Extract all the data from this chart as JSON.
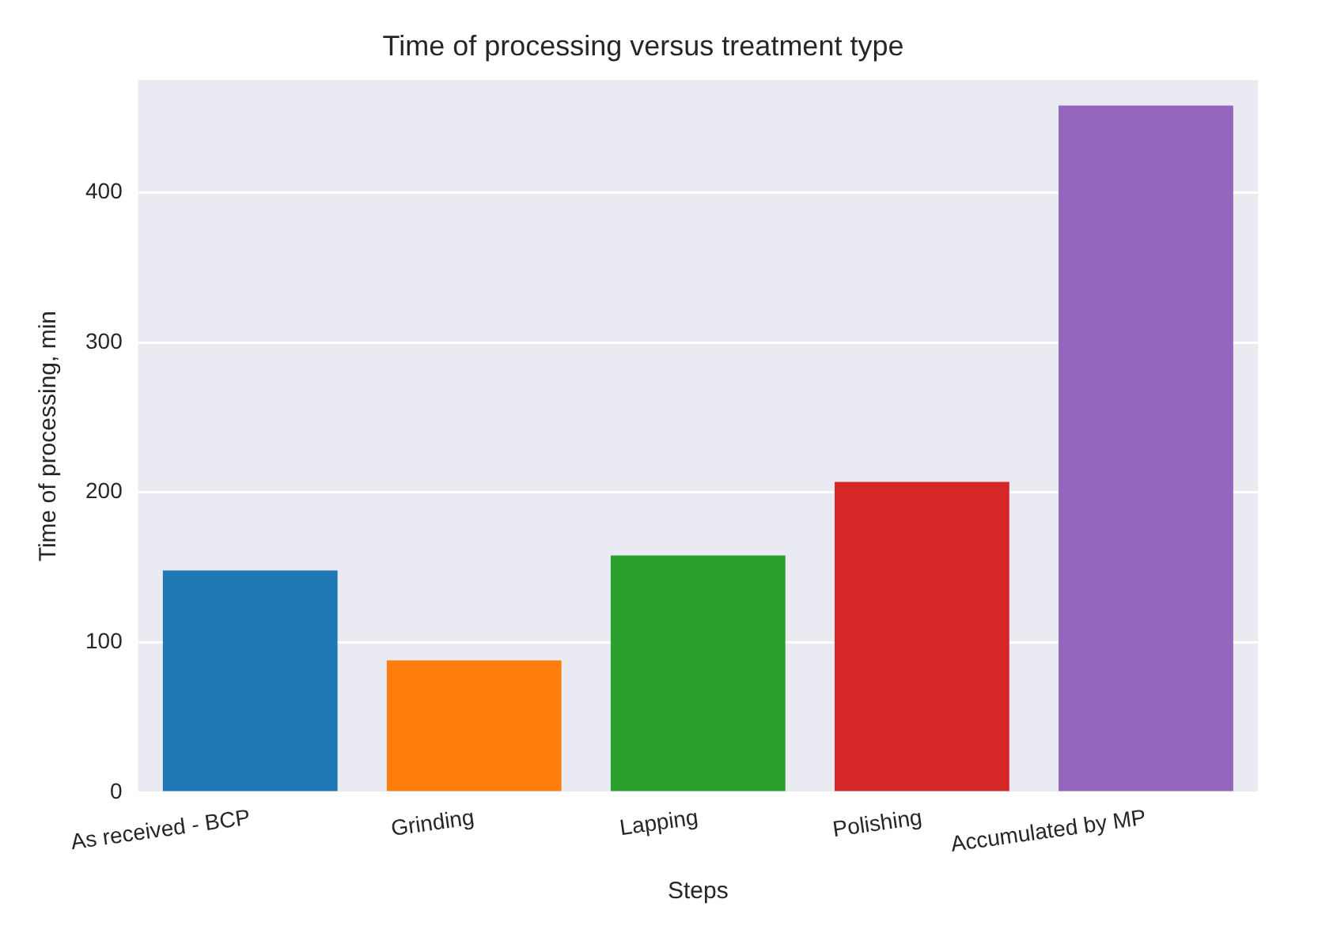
{
  "chart_data": {
    "type": "bar",
    "title": "Time of processing versus treatment type",
    "xlabel": "Steps",
    "ylabel": "Time of processing, min",
    "categories": [
      "As received - BCP",
      "Grinding",
      "Lapping",
      "Polishing",
      "Accumulated by MP"
    ],
    "values": [
      148,
      88,
      158,
      207,
      458
    ],
    "colors": [
      "#1f77b4",
      "#ff7f0e",
      "#2ca02c",
      "#d62728",
      "#9467bd"
    ],
    "ylim": [
      0,
      475
    ],
    "yticks": [
      0,
      100,
      200,
      300,
      400
    ],
    "grid": "y"
  }
}
